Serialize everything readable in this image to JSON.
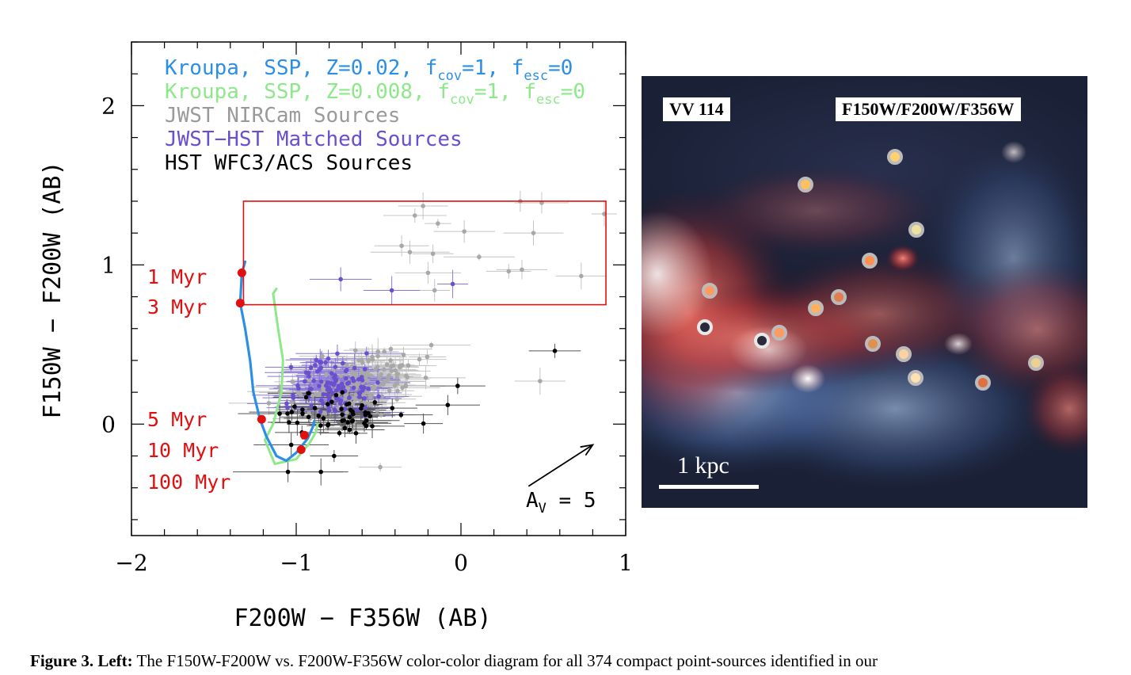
{
  "chart_data": {
    "type": "scatter",
    "xlabel": "F200W − F356W (AB)",
    "ylabel": "F150W − F200W (AB)",
    "xlim": [
      -2,
      1
    ],
    "ylim": [
      -0.7,
      2.4
    ],
    "x_ticks": [
      "−2",
      "−1",
      "0",
      "1"
    ],
    "y_ticks": [
      "0",
      "1",
      "2"
    ],
    "legend": [
      {
        "text": "Kroupa, SSP, Z=0.02, f",
        "sub1": "cov",
        "mid": "=1, f",
        "sub2": "esc",
        "end": "=0",
        "color": "#2b8fe6"
      },
      {
        "text": "Kroupa, SSP, Z=0.008, f",
        "sub1": "cov",
        "mid": "=1, f",
        "sub2": "esc",
        "end": "=0",
        "color": "#8ee88a"
      },
      {
        "text": "JWST NIRCam Sources",
        "color": "#9a9a9a"
      },
      {
        "text": "JWST−HST Matched Sources",
        "color": "#6a4fcf"
      },
      {
        "text": "HST WFC3/ACS Sources",
        "color": "#000000"
      }
    ],
    "age_labels": [
      "1 Myr",
      "3 Myr",
      "5 Myr",
      "10 Myr",
      "100 Myr"
    ],
    "age_label_color": "#e01010",
    "age_points": [
      {
        "x": -1.33,
        "y": 0.95
      },
      {
        "x": -1.34,
        "y": 0.76
      },
      {
        "x": -1.21,
        "y": 0.03
      },
      {
        "x": -0.95,
        "y": -0.07
      },
      {
        "x": -0.97,
        "y": -0.16
      }
    ],
    "selection_box": {
      "x": [
        -1.32,
        0.88
      ],
      "y": [
        0.75,
        1.4
      ],
      "color": "#e01010"
    },
    "extinction_vector": {
      "label_main": "A",
      "label_sub": "V",
      "label_end": " = 5",
      "from": [
        0.41,
        -0.39
      ],
      "to": [
        0.8,
        -0.13
      ]
    },
    "track_solar": [
      [
        -1.31,
        1.02
      ],
      [
        -1.33,
        0.95
      ],
      [
        -1.34,
        0.76
      ],
      [
        -1.31,
        0.6
      ],
      [
        -1.28,
        0.4
      ],
      [
        -1.26,
        0.2
      ],
      [
        -1.22,
        0.03
      ],
      [
        -1.18,
        -0.08
      ],
      [
        -1.12,
        -0.2
      ],
      [
        -1.06,
        -0.23
      ],
      [
        -1.0,
        -0.18
      ],
      [
        -0.93,
        -0.09
      ],
      [
        -0.9,
        -0.02
      ],
      [
        -0.89,
        0.02
      ]
    ],
    "track_subsolar": [
      [
        -1.12,
        0.85
      ],
      [
        -1.14,
        0.82
      ],
      [
        -1.11,
        0.6
      ],
      [
        -1.08,
        0.4
      ],
      [
        -1.09,
        0.2
      ],
      [
        -1.14,
        0.0
      ],
      [
        -1.19,
        -0.1
      ],
      [
        -1.13,
        -0.25
      ],
      [
        -1.0,
        -0.22
      ],
      [
        -0.92,
        -0.12
      ],
      [
        -0.88,
        -0.05
      ],
      [
        -0.87,
        0.0
      ]
    ],
    "series_gray_outliers": [
      [
        -0.28,
        1.31
      ],
      [
        -0.23,
        1.37
      ],
      [
        -0.14,
        1.26
      ],
      [
        0.02,
        1.21
      ],
      [
        0.36,
        1.4
      ],
      [
        0.49,
        1.39
      ],
      [
        0.44,
        1.2
      ],
      [
        0.87,
        1.32
      ],
      [
        -0.36,
        1.12
      ],
      [
        -0.31,
        1.08
      ],
      [
        -0.17,
        1.07
      ],
      [
        0.11,
        1.05
      ],
      [
        0.73,
        0.93
      ],
      [
        0.37,
        0.97
      ],
      [
        0.29,
        0.96
      ],
      [
        -0.2,
        0.95
      ],
      [
        -0.16,
        0.84
      ],
      [
        0.48,
        0.27
      ],
      [
        -0.49,
        -0.27
      ]
    ],
    "series_black_outliers": [
      [
        0.57,
        0.46
      ],
      [
        -0.02,
        0.24
      ],
      [
        -0.08,
        0.12
      ],
      [
        -1.05,
        -0.3
      ],
      [
        -0.77,
        -0.2
      ],
      [
        -0.85,
        -0.3
      ]
    ],
    "series_purple_outliers": [
      [
        -0.73,
        0.91
      ],
      [
        -0.42,
        0.84
      ],
      [
        -0.05,
        0.88
      ]
    ]
  },
  "right_panel": {
    "target_label": "VV 114",
    "filters_label": "F150W/F200W/F356W",
    "scale_label": "1 kpc"
  },
  "caption": {
    "bold": "Figure 3. Left:",
    "text": " The F150W-F200W vs. F200W-F356W color-color diagram for all 374 compact point-sources identified in our"
  }
}
